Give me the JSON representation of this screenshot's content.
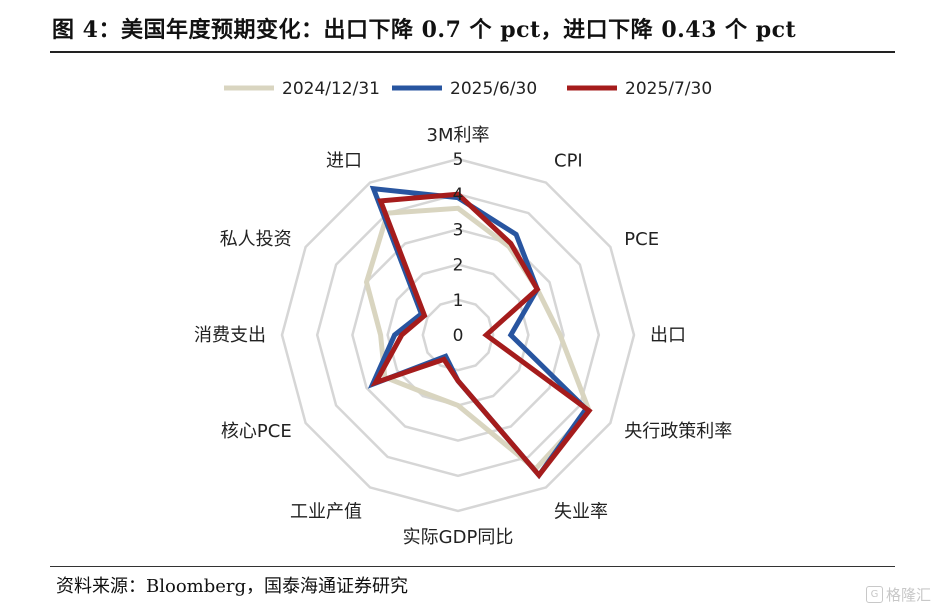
{
  "header": {
    "title": "图 4：美国年度预期变化：出口下降 0.7 个 pct，进口下降 0.43 个 pct"
  },
  "footer": {
    "source": "资料来源：Bloomberg，国泰海通证券研究",
    "watermark": "格隆汇"
  },
  "chart_data": {
    "type": "radar",
    "title": "",
    "axes": [
      "3M利率",
      "CPI",
      "PCE",
      "出口",
      "央行政策利率",
      "失业率",
      "实际GDP同比",
      "工业产值",
      "核心PCE",
      "消费支出",
      "私人投资",
      "进口"
    ],
    "rlim": [
      0,
      5
    ],
    "ticks": [
      0,
      1,
      2,
      3,
      4,
      5
    ],
    "grid": true,
    "legend_position": "top",
    "series": [
      {
        "name": "2024/12/31",
        "color": "#d9d5c0",
        "values": [
          3.6,
          2.9,
          2.6,
          2.9,
          4.3,
          4.4,
          2.0,
          1.9,
          2.4,
          2.2,
          3.0,
          4.0
        ]
      },
      {
        "name": "2025/6/30",
        "color": "#2855a0",
        "values": [
          3.9,
          3.3,
          2.6,
          1.5,
          4.2,
          4.6,
          1.3,
          0.7,
          2.8,
          1.8,
          1.2,
          4.8
        ]
      },
      {
        "name": "2025/7/30",
        "color": "#a51c1c",
        "values": [
          4.0,
          3.0,
          2.6,
          0.8,
          4.3,
          4.6,
          1.3,
          0.8,
          2.7,
          1.6,
          1.1,
          4.4
        ]
      }
    ]
  }
}
